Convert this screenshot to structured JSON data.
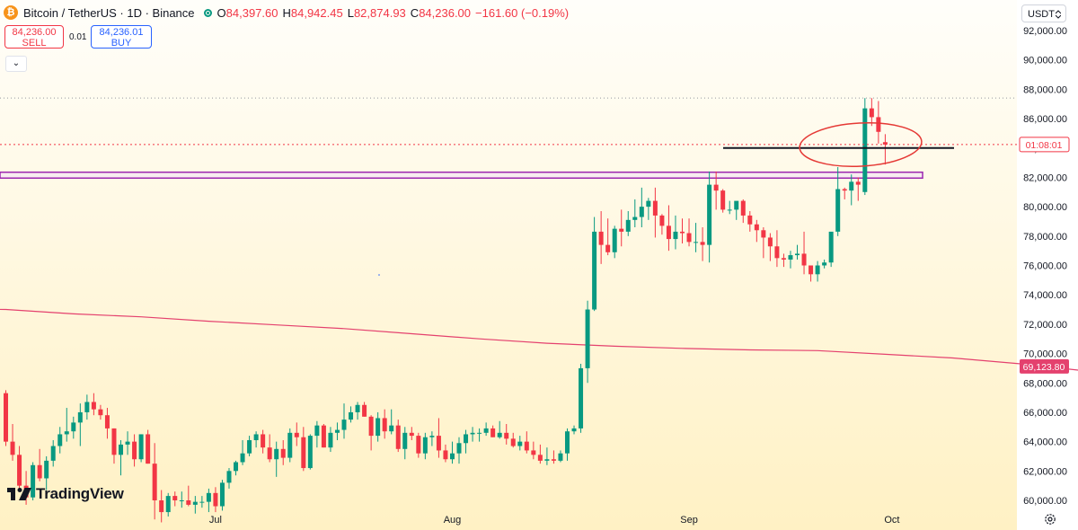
{
  "header": {
    "symbol": "Bitcoin / TetherUS · 1D · Binance",
    "o_label": "O",
    "o_value": "84,397.60",
    "h_label": "H",
    "h_value": "84,942.45",
    "l_label": "L",
    "l_value": "82,874.93",
    "c_label": "C",
    "c_value": "84,236.00",
    "change": "−161.60 (−0.19%)"
  },
  "trade": {
    "sell_price": "84,236.00",
    "sell_label": "SELL",
    "spread": "0.01",
    "buy_price": "84,236.01",
    "buy_label": "BUY"
  },
  "currency": "USDT",
  "brand": "TradingView",
  "icons": [
    "bitcoin-icon",
    "market-status-icon",
    "chevron-down-icon",
    "chevron-updown-icon",
    "gear-icon",
    "tradingview-logo-icon"
  ],
  "colors": {
    "up": "#089981",
    "down": "#f23645",
    "ma": "#e4416e",
    "background_top": "#fffdf3",
    "background_bottom": "#fff1c7",
    "zone": "#9c27b0",
    "annotation_circle": "#e53935"
  },
  "chart_data": {
    "type": "candlestick",
    "ylim": [
      59300,
      93500
    ],
    "y_ticks": [
      "92,000.00",
      "90,000.00",
      "88,000.00",
      "86,000.00",
      "84,000.00",
      "82,000.00",
      "80,000.00",
      "78,000.00",
      "76,000.00",
      "74,000.00",
      "72,000.00",
      "70,000.00",
      "68,000.00",
      "66,000.00",
      "64,000.00",
      "62,000.00",
      "60,000.00"
    ],
    "x_ticks": [
      "Jul",
      "Aug",
      "Sep",
      "Oct"
    ],
    "candles": [
      [
        67300,
        67500,
        63700,
        64000
      ],
      [
        64000,
        65200,
        62700,
        63100
      ],
      [
        63100,
        63700,
        60600,
        61000
      ],
      [
        61000,
        62000,
        59700,
        60200
      ],
      [
        60200,
        62600,
        60000,
        62400
      ],
      [
        62400,
        63500,
        61300,
        61500
      ],
      [
        61500,
        63000,
        60700,
        62700
      ],
      [
        62700,
        64100,
        62300,
        63700
      ],
      [
        63700,
        65000,
        63200,
        64500
      ],
      [
        64500,
        66300,
        64000,
        64700
      ],
      [
        64700,
        65700,
        64200,
        65300
      ],
      [
        65300,
        66600,
        63700,
        66000
      ],
      [
        66000,
        67200,
        65500,
        66700
      ],
      [
        66700,
        67300,
        65800,
        66200
      ],
      [
        66200,
        66500,
        65500,
        65800
      ],
      [
        65800,
        66300,
        64200,
        64900
      ],
      [
        64900,
        64900,
        62500,
        63100
      ],
      [
        63100,
        64100,
        61700,
        63800
      ],
      [
        63800,
        64700,
        63100,
        64000
      ],
      [
        64000,
        64500,
        62300,
        62800
      ],
      [
        62800,
        64500,
        62600,
        64500
      ],
      [
        64500,
        64800,
        62500,
        62500
      ],
      [
        62500,
        63900,
        58700,
        60000
      ],
      [
        60000,
        60700,
        58500,
        59200
      ],
      [
        59200,
        60500,
        58900,
        60300
      ],
      [
        60300,
        60600,
        59600,
        60000
      ],
      [
        60000,
        60600,
        59500,
        60000
      ],
      [
        60000,
        61000,
        59600,
        59700
      ],
      [
        59700,
        60300,
        59100,
        59900
      ],
      [
        59900,
        60300,
        59500,
        59900
      ],
      [
        59900,
        60800,
        59200,
        60500
      ],
      [
        60500,
        60900,
        59200,
        59600
      ],
      [
        59600,
        61400,
        59300,
        61200
      ],
      [
        61200,
        62200,
        60800,
        62000
      ],
      [
        62000,
        62700,
        61700,
        62600
      ],
      [
        62600,
        64100,
        62400,
        63200
      ],
      [
        63200,
        64400,
        63000,
        64100
      ],
      [
        64100,
        64700,
        63600,
        64500
      ],
      [
        64500,
        64800,
        63200,
        63600
      ],
      [
        63600,
        64500,
        62600,
        62800
      ],
      [
        62800,
        64000,
        61600,
        63500
      ],
      [
        63500,
        64100,
        62400,
        62900
      ],
      [
        62900,
        64900,
        62600,
        64600
      ],
      [
        64600,
        65300,
        63700,
        64300
      ],
      [
        64300,
        65000,
        62000,
        62200
      ],
      [
        62200,
        64500,
        62100,
        64400
      ],
      [
        64400,
        65400,
        63600,
        65100
      ],
      [
        65100,
        65200,
        63600,
        63600
      ],
      [
        63600,
        65000,
        63300,
        64600
      ],
      [
        64600,
        65300,
        64100,
        64800
      ],
      [
        64800,
        66600,
        64200,
        65500
      ],
      [
        65500,
        66400,
        65300,
        66000
      ],
      [
        66000,
        66700,
        65500,
        66500
      ],
      [
        66500,
        66700,
        65700,
        65700
      ],
      [
        65700,
        65800,
        63400,
        64400
      ],
      [
        64400,
        66000,
        64000,
        65600
      ],
      [
        65600,
        66200,
        64200,
        64700
      ],
      [
        64700,
        66200,
        64500,
        65100
      ],
      [
        65100,
        65500,
        63300,
        63500
      ],
      [
        63500,
        65000,
        62800,
        64600
      ],
      [
        64600,
        65000,
        64100,
        64400
      ],
      [
        64400,
        64600,
        62900,
        63200
      ],
      [
        63200,
        64600,
        62800,
        64300
      ],
      [
        64300,
        64700,
        63700,
        64400
      ],
      [
        64400,
        65600,
        62900,
        63400
      ],
      [
        63400,
        63800,
        62600,
        62800
      ],
      [
        62800,
        64000,
        62500,
        63200
      ],
      [
        63200,
        64300,
        62500,
        63900
      ],
      [
        63900,
        64800,
        63200,
        64500
      ],
      [
        64500,
        65000,
        64000,
        64600
      ],
      [
        64600,
        64900,
        64000,
        64600
      ],
      [
        64600,
        65300,
        64400,
        64900
      ],
      [
        64900,
        65100,
        64300,
        64300
      ],
      [
        64300,
        65400,
        64200,
        64600
      ],
      [
        64600,
        65200,
        63800,
        64200
      ],
      [
        64200,
        64600,
        63600,
        63700
      ],
      [
        63700,
        64400,
        63400,
        64000
      ],
      [
        64000,
        64700,
        63200,
        63400
      ],
      [
        63400,
        64000,
        62800,
        63100
      ],
      [
        63100,
        63800,
        62500,
        62700
      ],
      [
        62700,
        63600,
        62400,
        62800
      ],
      [
        62800,
        63400,
        62500,
        62700
      ],
      [
        62700,
        63400,
        62600,
        63200
      ],
      [
        63200,
        64900,
        62700,
        64700
      ],
      [
        64700,
        65100,
        64500,
        64900
      ],
      [
        64900,
        69300,
        64600,
        69000
      ],
      [
        69000,
        73600,
        68000,
        73000
      ],
      [
        73000,
        79300,
        72900,
        78300
      ],
      [
        78300,
        79700,
        76100,
        77400
      ],
      [
        77400,
        79200,
        76700,
        76900
      ],
      [
        76900,
        78700,
        76500,
        78500
      ],
      [
        78500,
        79800,
        77300,
        78300
      ],
      [
        78300,
        79700,
        78000,
        79100
      ],
      [
        79100,
        80500,
        78600,
        79300
      ],
      [
        79300,
        81300,
        78600,
        80000
      ],
      [
        80000,
        80600,
        79100,
        80400
      ],
      [
        80400,
        81300,
        77900,
        79400
      ],
      [
        79400,
        79500,
        78100,
        78700
      ],
      [
        78700,
        80100,
        77000,
        77800
      ],
      [
        77800,
        79400,
        77100,
        78300
      ],
      [
        78300,
        79200,
        77500,
        78200
      ],
      [
        78200,
        79200,
        77300,
        77600
      ],
      [
        77600,
        78900,
        76900,
        77600
      ],
      [
        77600,
        78600,
        76300,
        77400
      ],
      [
        77400,
        82400,
        76200,
        81500
      ],
      [
        81500,
        82400,
        79800,
        81100
      ],
      [
        81100,
        81200,
        79600,
        79800
      ],
      [
        79800,
        80400,
        79500,
        79800
      ],
      [
        79800,
        80200,
        79100,
        80400
      ],
      [
        80400,
        80500,
        78900,
        79400
      ],
      [
        79400,
        79700,
        78300,
        78800
      ],
      [
        78800,
        79100,
        77600,
        78400
      ],
      [
        78400,
        78600,
        76500,
        77900
      ],
      [
        77900,
        78200,
        76300,
        77300
      ],
      [
        77300,
        78400,
        75900,
        76500
      ],
      [
        76500,
        76800,
        75900,
        76400
      ],
      [
        76400,
        77000,
        75800,
        76700
      ],
      [
        76700,
        77400,
        76400,
        76800
      ],
      [
        76800,
        78300,
        75400,
        76000
      ],
      [
        76000,
        76000,
        74900,
        75400
      ],
      [
        75400,
        76300,
        74900,
        76000
      ],
      [
        76000,
        76400,
        75800,
        76200
      ],
      [
        76200,
        78200,
        75900,
        78300
      ],
      [
        78300,
        82700,
        78000,
        81200
      ],
      [
        81200,
        81300,
        80500,
        81100
      ],
      [
        81100,
        82200,
        80100,
        81700
      ],
      [
        81700,
        82000,
        80400,
        81500
      ],
      [
        81000,
        87400,
        80800,
        86700
      ],
      [
        86700,
        87400,
        85500,
        86100
      ],
      [
        86100,
        87200,
        84300,
        85100
      ],
      [
        84397.6,
        84942.45,
        82874.93,
        84236.0
      ]
    ],
    "moving_average": [
      [
        -16,
        73100
      ],
      [
        0,
        73000
      ],
      [
        10,
        72700
      ],
      [
        20,
        72500
      ],
      [
        30,
        72200
      ],
      [
        40,
        71950
      ],
      [
        50,
        71700
      ],
      [
        60,
        71350
      ],
      [
        70,
        71000
      ],
      [
        80,
        70700
      ],
      [
        90,
        70500
      ],
      [
        100,
        70350
      ],
      [
        110,
        70250
      ],
      [
        120,
        70200
      ],
      [
        130,
        69950
      ],
      [
        140,
        69700
      ],
      [
        150,
        69300
      ],
      [
        160,
        68800
      ],
      [
        170,
        68200
      ],
      [
        180,
        67500
      ],
      [
        190,
        66900
      ],
      [
        200,
        66400
      ],
      [
        210,
        66150
      ],
      [
        220,
        66000
      ],
      [
        230,
        66050
      ],
      [
        240,
        66200
      ],
      [
        250,
        66500
      ],
      [
        260,
        66900
      ],
      [
        270,
        67500
      ],
      [
        280,
        68200
      ],
      [
        285,
        68600
      ],
      [
        289,
        69123.8
      ]
    ],
    "price_label": "84,236.00",
    "countdown": "01:08:01",
    "ma_value_label": "69,123.80",
    "resistance_zone": [
      81950,
      82350
    ],
    "horizontal_level": 84000
  }
}
